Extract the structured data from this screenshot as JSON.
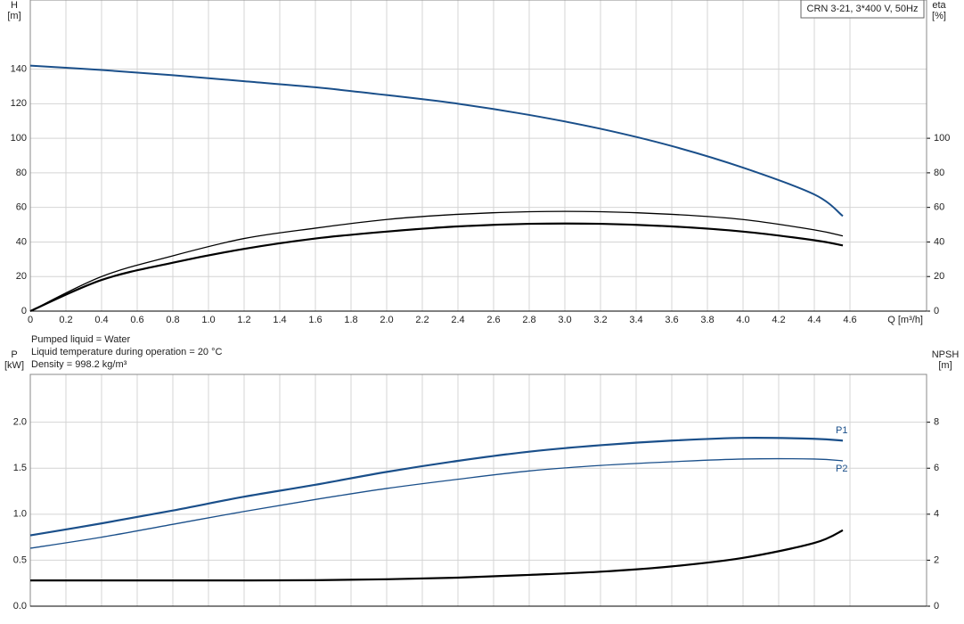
{
  "chart_data": [
    {
      "type": "line",
      "title": "CRN 3-21, 3*400 V, 50Hz",
      "y_label": [
        "H",
        "[m]"
      ],
      "y2_label": [
        "eta",
        "[%]"
      ],
      "x_label": "Q [m³/h]",
      "x": [
        0,
        0.4,
        0.8,
        1.2,
        1.6,
        2.0,
        2.4,
        2.8,
        3.2,
        3.6,
        4.0,
        4.4,
        4.56
      ],
      "xlim": [
        0,
        5.03
      ],
      "xticks": [
        0,
        0.2,
        0.4,
        0.6,
        0.8,
        {
          "value": 1,
          "label": "1.0"
        },
        1.2,
        1.4,
        1.6,
        1.8,
        {
          "value": 2,
          "label": "2.0"
        },
        2.2,
        2.4,
        2.6,
        2.8,
        {
          "value": 3,
          "label": "3.0"
        },
        3.2,
        3.4,
        3.6,
        3.8,
        {
          "value": 4,
          "label": "4.0"
        },
        4.2,
        4.4,
        4.6
      ],
      "ylim": [
        0,
        180
      ],
      "yticks": [
        0,
        20,
        40,
        60,
        80,
        100,
        120,
        140
      ],
      "y2lim": [
        0,
        180
      ],
      "y2ticks": [
        0,
        20,
        40,
        60,
        80,
        100
      ],
      "grid": true,
      "series": [
        {
          "color": "#1a4f8a",
          "width": 2,
          "values": [
            142,
            139.5,
            136.5,
            133,
            129.5,
            125,
            120,
            113.5,
            105.5,
            95.5,
            83,
            67.5,
            55
          ]
        },
        {
          "color": "#000000",
          "width": 1.3,
          "axis": "y2",
          "values": [
            0,
            20,
            32,
            42,
            48,
            53,
            56,
            57.5,
            57.5,
            56,
            53,
            47,
            43.5
          ]
        },
        {
          "color": "#000000",
          "width": 2.2,
          "axis": "y2",
          "values": [
            0,
            18,
            28,
            36,
            42,
            46,
            49,
            50.5,
            50.5,
            49,
            46,
            41,
            38
          ]
        }
      ]
    },
    {
      "type": "line",
      "notes": [
        "Pumped liquid = Water",
        "Liquid temperature during operation = 20 °C",
        "Density = 998.2 kg/m³"
      ],
      "y_label": [
        "P",
        "[kW]"
      ],
      "y2_label": [
        "NPSH",
        "[m]"
      ],
      "x": [
        0,
        0.4,
        0.8,
        1.2,
        1.6,
        2.0,
        2.4,
        2.8,
        3.2,
        3.6,
        4.0,
        4.4,
        4.56
      ],
      "xlim": [
        0,
        5.03
      ],
      "ylim": [
        0,
        2.52
      ],
      "yticks": [
        {
          "value": 0,
          "label": "0.0"
        },
        {
          "value": 0.5,
          "label": "0.5"
        },
        {
          "value": 1,
          "label": "1.0"
        },
        {
          "value": 1.5,
          "label": "1.5"
        },
        {
          "value": 2,
          "label": "2.0"
        }
      ],
      "y2lim": [
        0,
        10.08
      ],
      "y2ticks": [
        0,
        2,
        4,
        6,
        8
      ],
      "grid": true,
      "series": [
        {
          "name": "P1",
          "color": "#1a4f8a",
          "width": 2.2,
          "values": [
            0.77,
            0.9,
            1.04,
            1.19,
            1.32,
            1.46,
            1.58,
            1.68,
            1.75,
            1.8,
            1.83,
            1.82,
            1.8
          ]
        },
        {
          "name": "P2",
          "color": "#1a4f8a",
          "width": 1.3,
          "values": [
            0.63,
            0.75,
            0.89,
            1.03,
            1.16,
            1.28,
            1.38,
            1.47,
            1.53,
            1.57,
            1.6,
            1.6,
            1.58
          ]
        },
        {
          "color": "#000000",
          "width": 2.2,
          "axis": "y2",
          "values": [
            1.12,
            1.12,
            1.12,
            1.12,
            1.13,
            1.17,
            1.24,
            1.36,
            1.5,
            1.73,
            2.1,
            2.75,
            3.3
          ]
        }
      ]
    }
  ]
}
